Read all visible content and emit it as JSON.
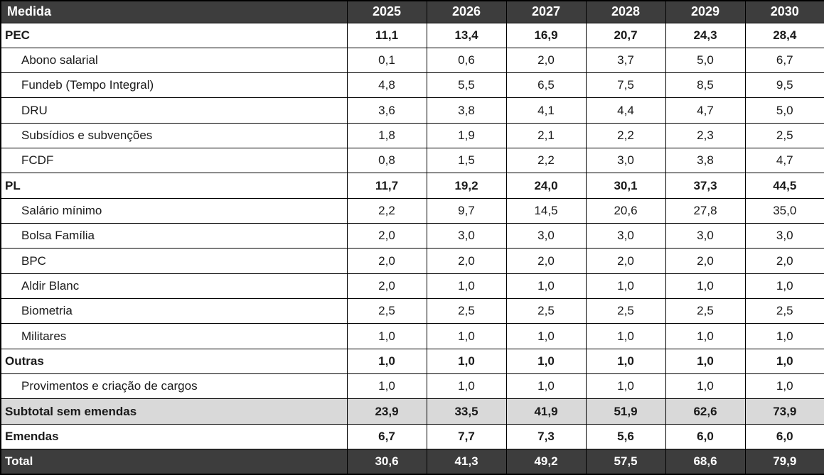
{
  "chart_data": {
    "type": "table",
    "title": "",
    "columns": [
      "Medida",
      "2025",
      "2026",
      "2027",
      "2028",
      "2029",
      "2030"
    ],
    "rows": [
      {
        "label": "PEC",
        "style": "section",
        "values": [
          "11,1",
          "13,4",
          "16,9",
          "20,7",
          "24,3",
          "28,4"
        ]
      },
      {
        "label": "Abono salarial",
        "style": "item",
        "values": [
          "0,1",
          "0,6",
          "2,0",
          "3,7",
          "5,0",
          "6,7"
        ]
      },
      {
        "label": "Fundeb (Tempo Integral)",
        "style": "item",
        "values": [
          "4,8",
          "5,5",
          "6,5",
          "7,5",
          "8,5",
          "9,5"
        ]
      },
      {
        "label": "DRU",
        "style": "item",
        "values": [
          "3,6",
          "3,8",
          "4,1",
          "4,4",
          "4,7",
          "5,0"
        ]
      },
      {
        "label": "Subsídios e subvenções",
        "style": "item",
        "values": [
          "1,8",
          "1,9",
          "2,1",
          "2,2",
          "2,3",
          "2,5"
        ]
      },
      {
        "label": "FCDF",
        "style": "item",
        "values": [
          "0,8",
          "1,5",
          "2,2",
          "3,0",
          "3,8",
          "4,7"
        ]
      },
      {
        "label": "PL",
        "style": "section",
        "values": [
          "11,7",
          "19,2",
          "24,0",
          "30,1",
          "37,3",
          "44,5"
        ]
      },
      {
        "label": "Salário mínimo",
        "style": "item",
        "values": [
          "2,2",
          "9,7",
          "14,5",
          "20,6",
          "27,8",
          "35,0"
        ]
      },
      {
        "label": "Bolsa Família",
        "style": "item",
        "values": [
          "2,0",
          "3,0",
          "3,0",
          "3,0",
          "3,0",
          "3,0"
        ]
      },
      {
        "label": "BPC",
        "style": "item",
        "values": [
          "2,0",
          "2,0",
          "2,0",
          "2,0",
          "2,0",
          "2,0"
        ]
      },
      {
        "label": "Aldir Blanc",
        "style": "item",
        "values": [
          "2,0",
          "1,0",
          "1,0",
          "1,0",
          "1,0",
          "1,0"
        ]
      },
      {
        "label": "Biometria",
        "style": "item",
        "values": [
          "2,5",
          "2,5",
          "2,5",
          "2,5",
          "2,5",
          "2,5"
        ]
      },
      {
        "label": "Militares",
        "style": "item",
        "values": [
          "1,0",
          "1,0",
          "1,0",
          "1,0",
          "1,0",
          "1,0"
        ]
      },
      {
        "label": "Outras",
        "style": "section",
        "values": [
          "1,0",
          "1,0",
          "1,0",
          "1,0",
          "1,0",
          "1,0"
        ]
      },
      {
        "label": "Provimentos e criação de cargos",
        "style": "item",
        "values": [
          "1,0",
          "1,0",
          "1,0",
          "1,0",
          "1,0",
          "1,0"
        ]
      },
      {
        "label": "Subtotal sem emendas",
        "style": "subtotal",
        "values": [
          "23,9",
          "33,5",
          "41,9",
          "51,9",
          "62,6",
          "73,9"
        ]
      },
      {
        "label": "Emendas",
        "style": "section",
        "values": [
          "6,7",
          "7,7",
          "7,3",
          "5,6",
          "6,0",
          "6,0"
        ]
      },
      {
        "label": "Total",
        "style": "total",
        "values": [
          "30,6",
          "41,3",
          "49,2",
          "57,5",
          "68,6",
          "79,9"
        ]
      }
    ],
    "layout": {
      "grid": true,
      "decimal_separator": ","
    },
    "colors": {
      "header_bg": "#3d3d3d",
      "header_text": "#ffffff",
      "subtotal_bg": "#d9d9d9",
      "border": "#000000",
      "body_bg": "#ffffff"
    }
  }
}
